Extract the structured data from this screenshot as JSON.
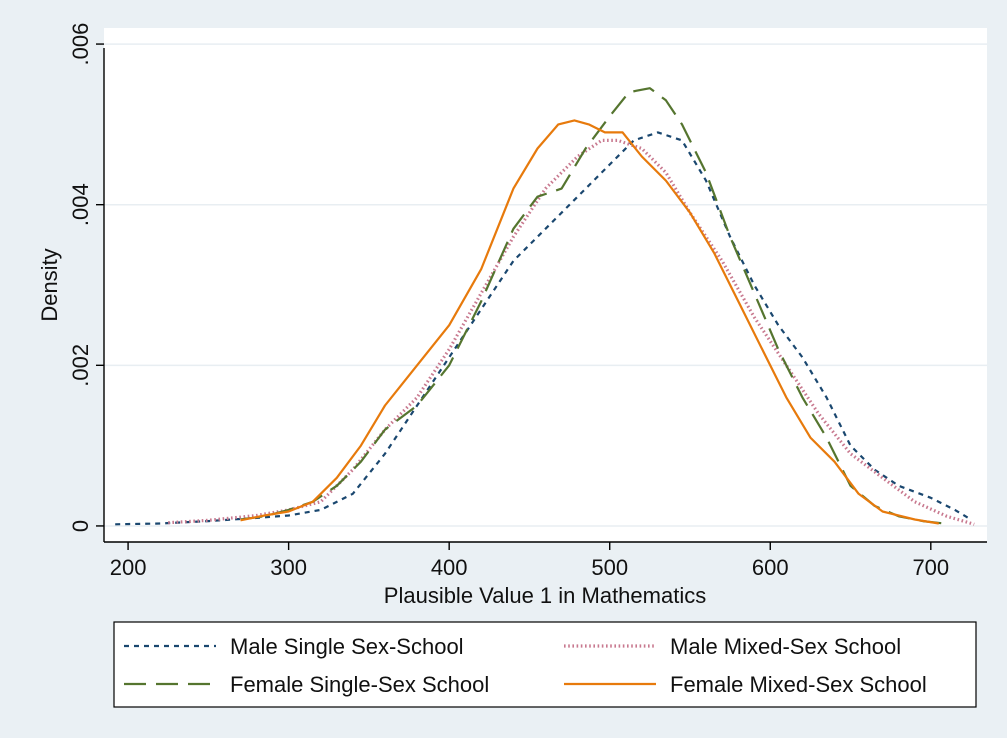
{
  "chart_data": {
    "type": "line",
    "title": "",
    "xlabel": "Plausible Value 1 in Mathematics",
    "ylabel": "Density",
    "xlim": [
      185,
      735
    ],
    "ylim": [
      -0.0002,
      0.0062
    ],
    "x_ticks": [
      200,
      300,
      400,
      500,
      600,
      700
    ],
    "x_tick_labels": [
      "200",
      "300",
      "400",
      "500",
      "600",
      "700"
    ],
    "y_ticks": [
      0,
      0.002,
      0.004,
      0.006
    ],
    "y_tick_labels": [
      "0",
      ".002",
      ".004",
      ".006"
    ],
    "grid": "horizontal",
    "legend_position": "bottom",
    "series": [
      {
        "name": "Male Single Sex-School",
        "color": "#1a476f",
        "style": "short-dash",
        "x": [
          192,
          220,
          250,
          280,
          300,
          320,
          340,
          360,
          380,
          400,
          420,
          440,
          460,
          480,
          500,
          515,
          530,
          545,
          560,
          575,
          590,
          605,
          620,
          635,
          650,
          665,
          680,
          700,
          715,
          725
        ],
        "y": [
          2e-05,
          3e-05,
          6e-05,
          0.0001,
          0.00013,
          0.0002,
          0.0004,
          0.0009,
          0.0015,
          0.0021,
          0.0027,
          0.0033,
          0.0037,
          0.0041,
          0.0045,
          0.0048,
          0.0049,
          0.0048,
          0.0043,
          0.0036,
          0.003,
          0.0025,
          0.0021,
          0.0016,
          0.001,
          0.0007,
          0.0005,
          0.00035,
          0.0002,
          8e-05
        ]
      },
      {
        "name": "Male Mixed-Sex School",
        "color": "#c8798f",
        "style": "dotted",
        "x": [
          225,
          250,
          280,
          300,
          320,
          340,
          360,
          380,
          400,
          420,
          440,
          460,
          480,
          495,
          505,
          520,
          535,
          550,
          570,
          590,
          610,
          630,
          650,
          670,
          690,
          710,
          727
        ],
        "y": [
          4e-05,
          7e-05,
          0.00013,
          0.0002,
          0.0003,
          0.0007,
          0.0012,
          0.0016,
          0.0022,
          0.0029,
          0.0036,
          0.0042,
          0.0046,
          0.0048,
          0.0048,
          0.0047,
          0.0044,
          0.0039,
          0.0033,
          0.0026,
          0.002,
          0.0014,
          0.0009,
          0.0006,
          0.0003,
          0.00012,
          2e-05
        ]
      },
      {
        "name": "Female Single-Sex School",
        "color": "#55752f",
        "style": "long-dash",
        "x": [
          270,
          285,
          300,
          315,
          330,
          345,
          360,
          380,
          400,
          420,
          440,
          455,
          470,
          485,
          500,
          512,
          525,
          535,
          545,
          560,
          575,
          590,
          605,
          620,
          635,
          650,
          665,
          680,
          695,
          708
        ],
        "y": [
          8e-05,
          0.00012,
          0.0002,
          0.0003,
          0.0005,
          0.0008,
          0.0012,
          0.0015,
          0.002,
          0.0028,
          0.0037,
          0.0041,
          0.0042,
          0.0047,
          0.0051,
          0.0054,
          0.00545,
          0.0053,
          0.005,
          0.0044,
          0.0036,
          0.0029,
          0.0022,
          0.0016,
          0.0011,
          0.0005,
          0.00025,
          0.00012,
          6e-05,
          3e-05
        ]
      },
      {
        "name": "Female Mixed-Sex School",
        "color": "#e77a0c",
        "style": "solid",
        "x": [
          270,
          285,
          300,
          315,
          330,
          345,
          360,
          380,
          400,
          420,
          440,
          455,
          468,
          478,
          487,
          497,
          508,
          520,
          535,
          550,
          565,
          580,
          595,
          610,
          625,
          640,
          655,
          670,
          690,
          705
        ],
        "y": [
          7e-05,
          0.00013,
          0.00018,
          0.0003,
          0.0006,
          0.001,
          0.0015,
          0.002,
          0.0025,
          0.0032,
          0.0042,
          0.0047,
          0.005,
          0.00505,
          0.005,
          0.0049,
          0.0049,
          0.0046,
          0.0043,
          0.0039,
          0.0034,
          0.0028,
          0.0022,
          0.0016,
          0.0011,
          0.0008,
          0.0004,
          0.00018,
          8e-05,
          3e-05
        ]
      }
    ]
  }
}
